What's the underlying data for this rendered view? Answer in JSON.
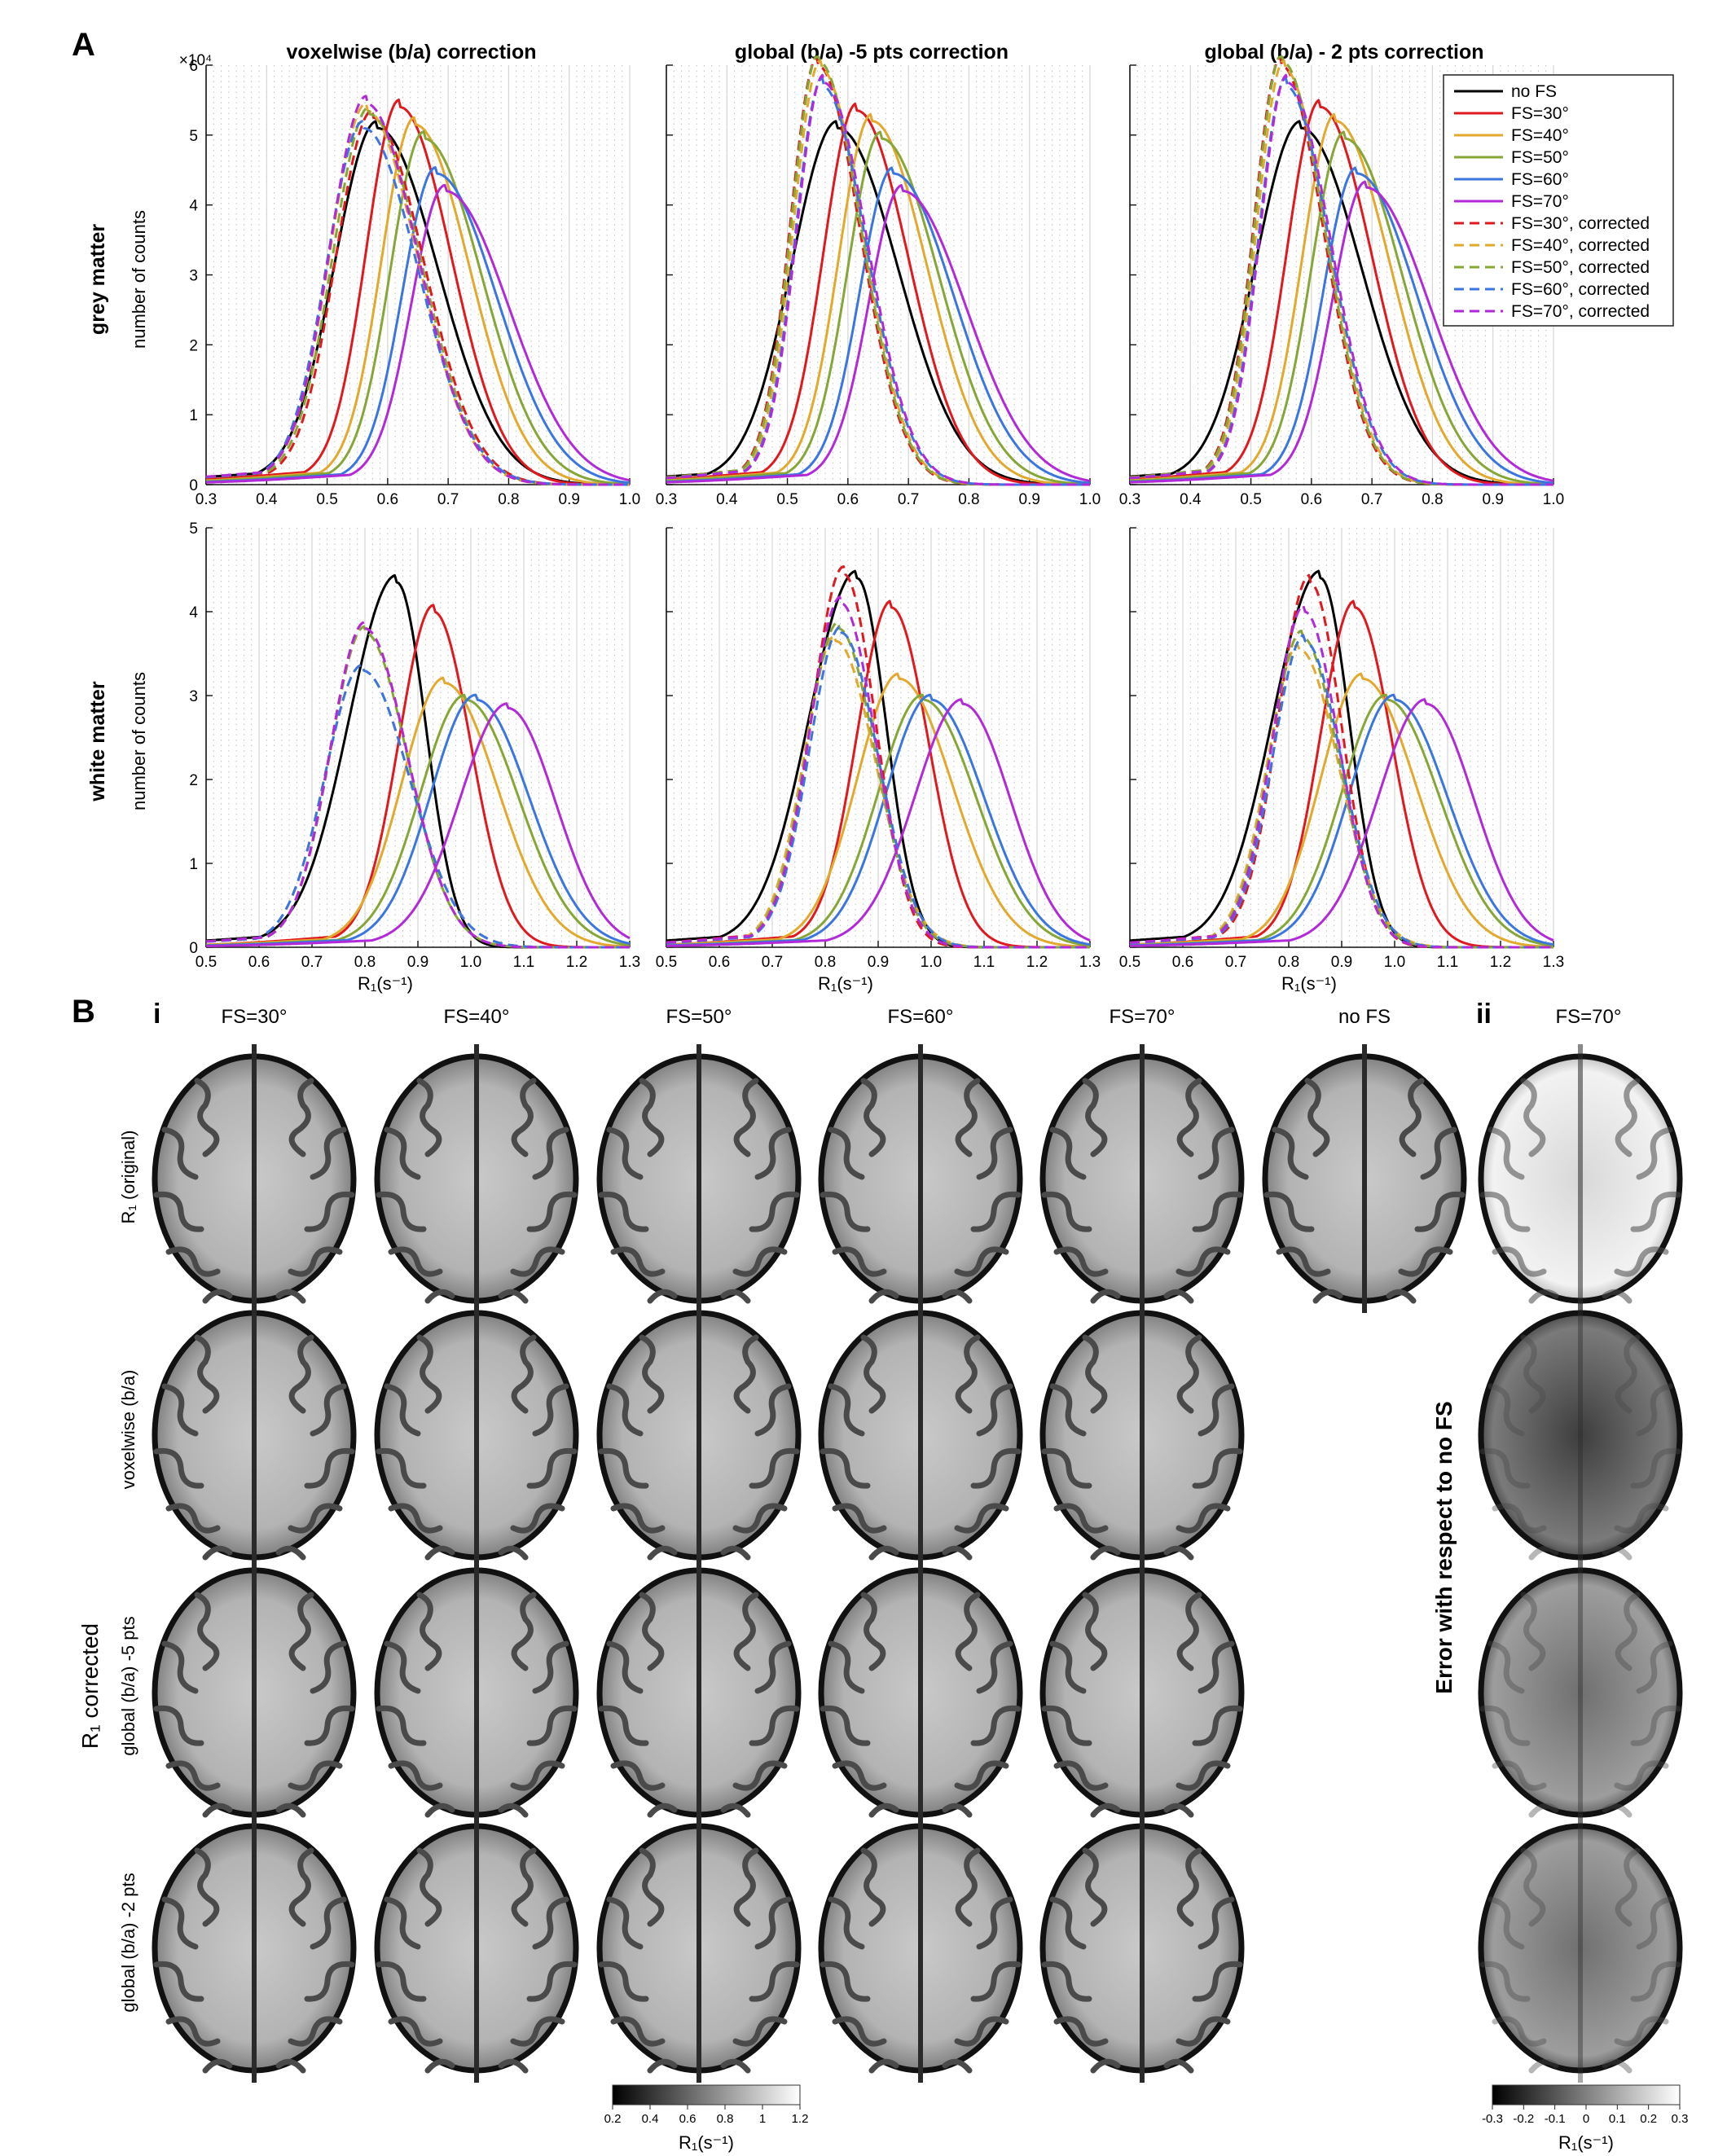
{
  "panel_a": {
    "letter": "A",
    "column_titles": [
      "voxelwise (b/a) correction",
      "global (b/a) -5 pts correction",
      "global (b/a) - 2 pts correction"
    ],
    "row_titles": [
      "grey matter",
      "white matter"
    ],
    "ylabel": "number of counts",
    "xlabel": "R₁(s⁻¹)",
    "y_exponent": "×10⁴",
    "series_colors": {
      "no FS": "#000000",
      "FS=30°": "#e0191f",
      "FS=40°": "#e2a92d",
      "FS=50°": "#86a636",
      "FS=60°": "#3b76e0",
      "FS=70°": "#b22ad8"
    },
    "legend": [
      {
        "label": "no FS",
        "color": "#000000",
        "dashed": false
      },
      {
        "label": "FS=30°",
        "color": "#e0191f",
        "dashed": false
      },
      {
        "label": "FS=40°",
        "color": "#e2a92d",
        "dashed": false
      },
      {
        "label": "FS=50°",
        "color": "#86a636",
        "dashed": false
      },
      {
        "label": "FS=60°",
        "color": "#3b76e0",
        "dashed": false
      },
      {
        "label": "FS=70°",
        "color": "#b22ad8",
        "dashed": false
      },
      {
        "label": "FS=30°, corrected",
        "color": "#e0191f",
        "dashed": true
      },
      {
        "label": "FS=40°, corrected",
        "color": "#e2a92d",
        "dashed": true
      },
      {
        "label": "FS=50°, corrected",
        "color": "#86a636",
        "dashed": true
      },
      {
        "label": "FS=60°, corrected",
        "color": "#3b76e0",
        "dashed": true
      },
      {
        "label": "FS=70°, corrected",
        "color": "#b22ad8",
        "dashed": true
      }
    ]
  },
  "chart_data": [
    {
      "type": "line",
      "row": 0,
      "col": 0,
      "xlim": [
        0.3,
        1.0
      ],
      "ylim": [
        0,
        6
      ],
      "xticks": [
        "0.3",
        "0.4",
        "0.5",
        "0.6",
        "0.7",
        "0.8",
        "0.9",
        "1.0"
      ],
      "yticks": [
        "0",
        "1",
        "2",
        "3",
        "4",
        "5",
        "6"
      ],
      "series": [
        {
          "name": "no FS",
          "peak": 0.583,
          "height": 5.1,
          "left": 0.07,
          "right": 0.1,
          "dashed": false
        },
        {
          "name": "FS=30°",
          "peak": 0.62,
          "height": 5.4,
          "left": 0.055,
          "right": 0.085,
          "dashed": false
        },
        {
          "name": "FS=40°",
          "peak": 0.645,
          "height": 5.15,
          "left": 0.055,
          "right": 0.09,
          "dashed": false
        },
        {
          "name": "FS=50°",
          "peak": 0.66,
          "height": 4.95,
          "left": 0.055,
          "right": 0.095,
          "dashed": false
        },
        {
          "name": "FS=60°",
          "peak": 0.68,
          "height": 4.45,
          "left": 0.055,
          "right": 0.1,
          "dashed": false
        },
        {
          "name": "FS=70°",
          "peak": 0.695,
          "height": 4.2,
          "left": 0.055,
          "right": 0.105,
          "dashed": false
        },
        {
          "name": "FS=30°, corrected",
          "peak": 0.575,
          "height": 5.25,
          "left": 0.06,
          "right": 0.085,
          "dashed": true
        },
        {
          "name": "FS=40°, corrected",
          "peak": 0.565,
          "height": 5.35,
          "left": 0.06,
          "right": 0.085,
          "dashed": true
        },
        {
          "name": "FS=50°, corrected",
          "peak": 0.57,
          "height": 5.3,
          "left": 0.06,
          "right": 0.085,
          "dashed": true
        },
        {
          "name": "FS=60°, corrected",
          "peak": 0.56,
          "height": 5.1,
          "left": 0.06,
          "right": 0.09,
          "dashed": true
        },
        {
          "name": "FS=70°, corrected",
          "peak": 0.565,
          "height": 5.45,
          "left": 0.06,
          "right": 0.085,
          "dashed": true
        }
      ]
    },
    {
      "type": "line",
      "row": 0,
      "col": 1,
      "xlim": [
        0.3,
        1.0
      ],
      "ylim": [
        0,
        6
      ],
      "xticks": [
        "0.3",
        "0.4",
        "0.5",
        "0.6",
        "0.7",
        "0.8",
        "0.9",
        "1.0"
      ],
      "yticks": [
        "0",
        "1",
        "2",
        "3",
        "4",
        "5",
        "6"
      ],
      "series": [
        {
          "name": "no FS",
          "peak": 0.583,
          "height": 5.1,
          "left": 0.075,
          "right": 0.1,
          "dashed": false
        },
        {
          "name": "FS=30°",
          "peak": 0.615,
          "height": 5.35,
          "left": 0.055,
          "right": 0.085,
          "dashed": false
        },
        {
          "name": "FS=40°",
          "peak": 0.64,
          "height": 5.2,
          "left": 0.055,
          "right": 0.09,
          "dashed": false
        },
        {
          "name": "FS=50°",
          "peak": 0.655,
          "height": 4.95,
          "left": 0.055,
          "right": 0.095,
          "dashed": false
        },
        {
          "name": "FS=60°",
          "peak": 0.675,
          "height": 4.45,
          "left": 0.055,
          "right": 0.1,
          "dashed": false
        },
        {
          "name": "FS=70°",
          "peak": 0.69,
          "height": 4.2,
          "left": 0.055,
          "right": 0.105,
          "dashed": false
        },
        {
          "name": "FS=30°, corrected",
          "peak": 0.55,
          "height": 6.0,
          "left": 0.045,
          "right": 0.07,
          "dashed": true
        },
        {
          "name": "FS=40°, corrected",
          "peak": 0.555,
          "height": 5.95,
          "left": 0.045,
          "right": 0.07,
          "dashed": true
        },
        {
          "name": "FS=50°, corrected",
          "peak": 0.552,
          "height": 6.05,
          "left": 0.045,
          "right": 0.07,
          "dashed": true
        },
        {
          "name": "FS=60°, corrected",
          "peak": 0.558,
          "height": 5.7,
          "left": 0.045,
          "right": 0.072,
          "dashed": true
        },
        {
          "name": "FS=70°, corrected",
          "peak": 0.56,
          "height": 5.75,
          "left": 0.045,
          "right": 0.072,
          "dashed": true
        }
      ]
    },
    {
      "type": "line",
      "row": 0,
      "col": 2,
      "xlim": [
        0.3,
        1.0
      ],
      "ylim": [
        0,
        6
      ],
      "xticks": [
        "0.3",
        "0.4",
        "0.5",
        "0.6",
        "0.7",
        "0.8",
        "0.9",
        "1.0"
      ],
      "yticks": [
        "0",
        "1",
        "2",
        "3",
        "4",
        "5",
        "6"
      ],
      "series": [
        {
          "name": "no FS",
          "peak": 0.583,
          "height": 5.1,
          "left": 0.075,
          "right": 0.1,
          "dashed": false
        },
        {
          "name": "FS=30°",
          "peak": 0.615,
          "height": 5.4,
          "left": 0.055,
          "right": 0.085,
          "dashed": false
        },
        {
          "name": "FS=40°",
          "peak": 0.64,
          "height": 5.2,
          "left": 0.055,
          "right": 0.09,
          "dashed": false
        },
        {
          "name": "FS=50°",
          "peak": 0.655,
          "height": 4.95,
          "left": 0.055,
          "right": 0.095,
          "dashed": false
        },
        {
          "name": "FS=60°",
          "peak": 0.675,
          "height": 4.45,
          "left": 0.055,
          "right": 0.1,
          "dashed": false
        },
        {
          "name": "FS=70°",
          "peak": 0.69,
          "height": 4.25,
          "left": 0.055,
          "right": 0.105,
          "dashed": false
        },
        {
          "name": "FS=30°, corrected",
          "peak": 0.55,
          "height": 6.0,
          "left": 0.045,
          "right": 0.07,
          "dashed": true
        },
        {
          "name": "FS=40°, corrected",
          "peak": 0.555,
          "height": 5.95,
          "left": 0.045,
          "right": 0.07,
          "dashed": true
        },
        {
          "name": "FS=50°, corrected",
          "peak": 0.552,
          "height": 6.05,
          "left": 0.045,
          "right": 0.07,
          "dashed": true
        },
        {
          "name": "FS=60°, corrected",
          "peak": 0.558,
          "height": 5.7,
          "left": 0.045,
          "right": 0.072,
          "dashed": true
        },
        {
          "name": "FS=70°, corrected",
          "peak": 0.56,
          "height": 5.75,
          "left": 0.045,
          "right": 0.072,
          "dashed": true
        }
      ]
    },
    {
      "type": "line",
      "row": 1,
      "col": 0,
      "xlim": [
        0.5,
        1.3
      ],
      "ylim": [
        0,
        5
      ],
      "xticks": [
        "0.5",
        "0.6",
        "0.7",
        "0.8",
        "0.9",
        "1.0",
        "1.1",
        "1.2",
        "1.3"
      ],
      "yticks": [
        "0",
        "1",
        "2",
        "3",
        "4",
        "5"
      ],
      "series": [
        {
          "name": "no FS",
          "peak": 0.86,
          "height": 4.35,
          "left": 0.09,
          "right": 0.055,
          "dashed": false
        },
        {
          "name": "FS=30°",
          "peak": 0.93,
          "height": 4.0,
          "left": 0.065,
          "right": 0.07,
          "dashed": false
        },
        {
          "name": "FS=40°",
          "peak": 0.95,
          "height": 3.15,
          "left": 0.08,
          "right": 0.1,
          "dashed": false
        },
        {
          "name": "FS=50°",
          "peak": 0.99,
          "height": 2.95,
          "left": 0.085,
          "right": 0.1,
          "dashed": false
        },
        {
          "name": "FS=60°",
          "peak": 1.01,
          "height": 2.95,
          "left": 0.085,
          "right": 0.1,
          "dashed": false
        },
        {
          "name": "FS=70°",
          "peak": 1.07,
          "height": 2.85,
          "left": 0.09,
          "right": 0.09,
          "dashed": false
        },
        {
          "name": "FS=30°, corrected",
          "peak": 0.8,
          "height": 3.8,
          "left": 0.065,
          "right": 0.08,
          "dashed": true
        },
        {
          "name": "FS=40°, corrected",
          "peak": 0.795,
          "height": 3.3,
          "left": 0.07,
          "right": 0.09,
          "dashed": true
        },
        {
          "name": "FS=50°, corrected",
          "peak": 0.8,
          "height": 3.75,
          "left": 0.065,
          "right": 0.08,
          "dashed": true
        },
        {
          "name": "FS=60°, corrected",
          "peak": 0.795,
          "height": 3.3,
          "left": 0.07,
          "right": 0.09,
          "dashed": true
        },
        {
          "name": "FS=70°, corrected",
          "peak": 0.8,
          "height": 3.8,
          "left": 0.065,
          "right": 0.08,
          "dashed": true
        }
      ]
    },
    {
      "type": "line",
      "row": 1,
      "col": 1,
      "xlim": [
        0.5,
        1.3
      ],
      "ylim": [
        0,
        5
      ],
      "xticks": [
        "0.5",
        "0.6",
        "0.7",
        "0.8",
        "0.9",
        "1.0",
        "1.1",
        "1.2",
        "1.3"
      ],
      "yticks": [
        "0",
        "1",
        "2",
        "3",
        "4",
        "5"
      ],
      "series": [
        {
          "name": "no FS",
          "peak": 0.86,
          "height": 4.4,
          "left": 0.09,
          "right": 0.055,
          "dashed": false
        },
        {
          "name": "FS=30°",
          "peak": 0.925,
          "height": 4.05,
          "left": 0.065,
          "right": 0.07,
          "dashed": false
        },
        {
          "name": "FS=40°",
          "peak": 0.94,
          "height": 3.2,
          "left": 0.08,
          "right": 0.1,
          "dashed": false
        },
        {
          "name": "FS=50°",
          "peak": 0.985,
          "height": 2.95,
          "left": 0.085,
          "right": 0.1,
          "dashed": false
        },
        {
          "name": "FS=60°",
          "peak": 1.0,
          "height": 2.95,
          "left": 0.085,
          "right": 0.1,
          "dashed": false
        },
        {
          "name": "FS=70°",
          "peak": 1.06,
          "height": 2.9,
          "left": 0.09,
          "right": 0.09,
          "dashed": false
        },
        {
          "name": "FS=30°, corrected",
          "peak": 0.835,
          "height": 4.45,
          "left": 0.06,
          "right": 0.06,
          "dashed": true
        },
        {
          "name": "FS=40°, corrected",
          "peak": 0.82,
          "height": 3.65,
          "left": 0.06,
          "right": 0.075,
          "dashed": true
        },
        {
          "name": "FS=50°, corrected",
          "peak": 0.825,
          "height": 3.8,
          "left": 0.06,
          "right": 0.07,
          "dashed": true
        },
        {
          "name": "FS=60°, corrected",
          "peak": 0.83,
          "height": 3.75,
          "left": 0.06,
          "right": 0.07,
          "dashed": true
        },
        {
          "name": "FS=70°, corrected",
          "peak": 0.83,
          "height": 4.1,
          "left": 0.06,
          "right": 0.065,
          "dashed": true
        }
      ]
    },
    {
      "type": "line",
      "row": 1,
      "col": 2,
      "xlim": [
        0.5,
        1.3
      ],
      "ylim": [
        0,
        5
      ],
      "xticks": [
        "0.5",
        "0.6",
        "0.7",
        "0.8",
        "0.9",
        "1.0",
        "1.1",
        "1.2",
        "1.3"
      ],
      "yticks": [
        "0",
        "1",
        "2",
        "3",
        "4",
        "5"
      ],
      "series": [
        {
          "name": "no FS",
          "peak": 0.86,
          "height": 4.4,
          "left": 0.09,
          "right": 0.055,
          "dashed": false
        },
        {
          "name": "FS=30°",
          "peak": 0.925,
          "height": 4.05,
          "left": 0.065,
          "right": 0.07,
          "dashed": false
        },
        {
          "name": "FS=40°",
          "peak": 0.94,
          "height": 3.2,
          "left": 0.08,
          "right": 0.1,
          "dashed": false
        },
        {
          "name": "FS=50°",
          "peak": 0.985,
          "height": 2.95,
          "left": 0.085,
          "right": 0.1,
          "dashed": false
        },
        {
          "name": "FS=60°",
          "peak": 1.0,
          "height": 2.95,
          "left": 0.085,
          "right": 0.1,
          "dashed": false
        },
        {
          "name": "FS=70°",
          "peak": 1.06,
          "height": 2.9,
          "left": 0.09,
          "right": 0.09,
          "dashed": false
        },
        {
          "name": "FS=30°, corrected",
          "peak": 0.84,
          "height": 4.35,
          "left": 0.06,
          "right": 0.06,
          "dashed": true
        },
        {
          "name": "FS=40°, corrected",
          "peak": 0.82,
          "height": 3.55,
          "left": 0.06,
          "right": 0.075,
          "dashed": true
        },
        {
          "name": "FS=50°, corrected",
          "peak": 0.825,
          "height": 3.7,
          "left": 0.06,
          "right": 0.07,
          "dashed": true
        },
        {
          "name": "FS=60°, corrected",
          "peak": 0.83,
          "height": 3.65,
          "left": 0.06,
          "right": 0.07,
          "dashed": true
        },
        {
          "name": "FS=70°, corrected",
          "peak": 0.83,
          "height": 4.0,
          "left": 0.06,
          "right": 0.065,
          "dashed": true
        }
      ]
    }
  ],
  "panel_b": {
    "letter": "B",
    "sub_i": "i",
    "sub_ii": "ii",
    "column_titles": [
      "FS=30°",
      "FS=40°",
      "FS=50°",
      "FS=60°",
      "FS=70°",
      "no FS"
    ],
    "error_column_title": "FS=70°",
    "row_labels": [
      "voxelwise (b/a)",
      "global (b/a) -5 pts",
      "global (b/a) -2 pts"
    ],
    "row_label_original": "R₁ (original)",
    "group_label": "R₁ corrected",
    "error_label": "Error with respect to no FS",
    "colorbar_left": {
      "ticks": [
        "0.2",
        "0.4",
        "0.6",
        "0.8",
        "1",
        "1.2"
      ],
      "label": "R₁(s⁻¹)",
      "range": [
        0.2,
        1.2
      ]
    },
    "colorbar_right": {
      "ticks": [
        "-0.3",
        "-0.2",
        "-0.1",
        "0",
        "0.1",
        "0.2",
        "0.3"
      ],
      "label": "R₁(s⁻¹)",
      "range": [
        -0.3,
        0.3
      ]
    }
  }
}
